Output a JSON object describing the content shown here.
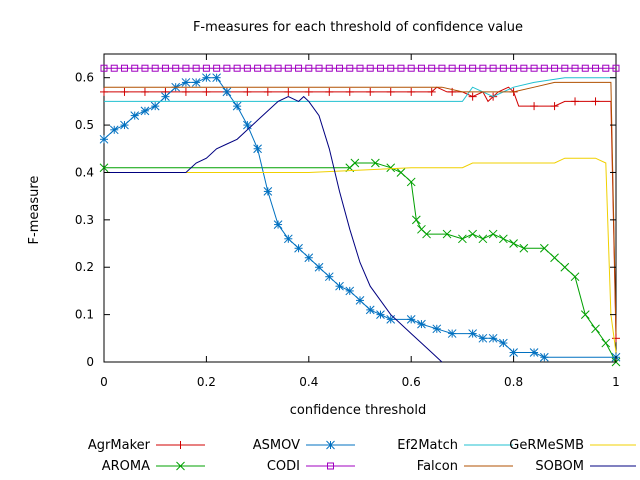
{
  "chart_data": {
    "type": "line",
    "title": "F-measures for each threshold of confidence value",
    "xlabel": "confidence threshold",
    "ylabel": "F-measure",
    "xlim": [
      0,
      1
    ],
    "ylim": [
      0,
      0.65
    ],
    "xticks": [
      0,
      0.2,
      0.4,
      0.6,
      0.8,
      1
    ],
    "xtick_labels": [
      "0",
      "0.2",
      "0.4",
      "0.6",
      "0.8",
      "1"
    ],
    "yticks": [
      0,
      0.1,
      0.2,
      0.3,
      0.4,
      0.5,
      0.6
    ],
    "ytick_labels": [
      "0",
      "0.1",
      "0.2",
      "0.3",
      "0.4",
      "0.5",
      "0.6"
    ],
    "grid": false,
    "legend_position": "bottom",
    "series": [
      {
        "name": "AgrMaker",
        "color": "#d00000",
        "marker": "plus",
        "points": [
          [
            0,
            0.57
          ],
          [
            0.64,
            0.57
          ],
          [
            0.65,
            0.58
          ],
          [
            0.67,
            0.57
          ],
          [
            0.7,
            0.57
          ],
          [
            0.72,
            0.56
          ],
          [
            0.74,
            0.57
          ],
          [
            0.75,
            0.55
          ],
          [
            0.77,
            0.57
          ],
          [
            0.79,
            0.58
          ],
          [
            0.8,
            0.57
          ],
          [
            0.81,
            0.54
          ],
          [
            0.88,
            0.54
          ],
          [
            0.9,
            0.55
          ],
          [
            0.98,
            0.55
          ],
          [
            0.99,
            0.55
          ],
          [
            1.0,
            0.05
          ]
        ]
      },
      {
        "name": "AROMA",
        "color": "#00a000",
        "marker": "x",
        "points": [
          [
            0,
            0.41
          ],
          [
            0.48,
            0.41
          ],
          [
            0.49,
            0.42
          ],
          [
            0.53,
            0.42
          ],
          [
            0.56,
            0.41
          ],
          [
            0.58,
            0.4
          ],
          [
            0.6,
            0.38
          ],
          [
            0.61,
            0.3
          ],
          [
            0.62,
            0.28
          ],
          [
            0.63,
            0.27
          ],
          [
            0.67,
            0.27
          ],
          [
            0.7,
            0.26
          ],
          [
            0.72,
            0.27
          ],
          [
            0.74,
            0.26
          ],
          [
            0.76,
            0.27
          ],
          [
            0.78,
            0.26
          ],
          [
            0.8,
            0.25
          ],
          [
            0.82,
            0.24
          ],
          [
            0.86,
            0.24
          ],
          [
            0.88,
            0.22
          ],
          [
            0.9,
            0.2
          ],
          [
            0.92,
            0.18
          ],
          [
            0.94,
            0.1
          ],
          [
            0.96,
            0.07
          ],
          [
            0.98,
            0.04
          ],
          [
            1.0,
            0.0
          ]
        ]
      },
      {
        "name": "ASMOV",
        "color": "#0070c0",
        "marker": "asterisk",
        "points": [
          [
            0,
            0.47
          ],
          [
            0.02,
            0.49
          ],
          [
            0.04,
            0.5
          ],
          [
            0.06,
            0.52
          ],
          [
            0.08,
            0.53
          ],
          [
            0.1,
            0.54
          ],
          [
            0.12,
            0.56
          ],
          [
            0.14,
            0.58
          ],
          [
            0.16,
            0.59
          ],
          [
            0.18,
            0.59
          ],
          [
            0.2,
            0.6
          ],
          [
            0.22,
            0.6
          ],
          [
            0.24,
            0.57
          ],
          [
            0.26,
            0.54
          ],
          [
            0.28,
            0.5
          ],
          [
            0.3,
            0.45
          ],
          [
            0.32,
            0.36
          ],
          [
            0.34,
            0.29
          ],
          [
            0.36,
            0.26
          ],
          [
            0.38,
            0.24
          ],
          [
            0.4,
            0.22
          ],
          [
            0.42,
            0.2
          ],
          [
            0.44,
            0.18
          ],
          [
            0.46,
            0.16
          ],
          [
            0.48,
            0.15
          ],
          [
            0.5,
            0.13
          ],
          [
            0.52,
            0.11
          ],
          [
            0.54,
            0.1
          ],
          [
            0.56,
            0.09
          ],
          [
            0.6,
            0.09
          ],
          [
            0.62,
            0.08
          ],
          [
            0.65,
            0.07
          ],
          [
            0.68,
            0.06
          ],
          [
            0.72,
            0.06
          ],
          [
            0.74,
            0.05
          ],
          [
            0.76,
            0.05
          ],
          [
            0.78,
            0.04
          ],
          [
            0.8,
            0.02
          ],
          [
            0.84,
            0.02
          ],
          [
            0.86,
            0.01
          ],
          [
            1.0,
            0.01
          ]
        ]
      },
      {
        "name": "CODI",
        "color": "#a000c0",
        "marker": "square",
        "points": [
          [
            0,
            0.62
          ],
          [
            1.0,
            0.62
          ]
        ]
      },
      {
        "name": "Ef2Match",
        "color": "#20c0d0",
        "marker": "none",
        "points": [
          [
            0,
            0.55
          ],
          [
            0.7,
            0.55
          ],
          [
            0.72,
            0.58
          ],
          [
            0.76,
            0.56
          ],
          [
            0.8,
            0.58
          ],
          [
            0.84,
            0.59
          ],
          [
            0.9,
            0.6
          ],
          [
            1.0,
            0.6
          ]
        ]
      },
      {
        "name": "Falcon",
        "color": "#b05000",
        "marker": "none",
        "points": [
          [
            0,
            0.58
          ],
          [
            0.66,
            0.58
          ],
          [
            0.7,
            0.57
          ],
          [
            0.76,
            0.57
          ],
          [
            0.8,
            0.57
          ],
          [
            0.84,
            0.58
          ],
          [
            0.88,
            0.59
          ],
          [
            0.99,
            0.59
          ],
          [
            1.0,
            0.06
          ]
        ]
      },
      {
        "name": "GeRMeSMB",
        "color": "#f0d000",
        "marker": "none",
        "points": [
          [
            0,
            0.4
          ],
          [
            0.4,
            0.4
          ],
          [
            0.6,
            0.41
          ],
          [
            0.7,
            0.41
          ],
          [
            0.72,
            0.42
          ],
          [
            0.88,
            0.42
          ],
          [
            0.9,
            0.43
          ],
          [
            0.96,
            0.43
          ],
          [
            0.98,
            0.42
          ],
          [
            0.99,
            0.1
          ],
          [
            1.0,
            0.02
          ]
        ]
      },
      {
        "name": "SOBOM",
        "color": "#000080",
        "marker": "none",
        "points": [
          [
            0,
            0.4
          ],
          [
            0.16,
            0.4
          ],
          [
            0.18,
            0.42
          ],
          [
            0.2,
            0.43
          ],
          [
            0.22,
            0.45
          ],
          [
            0.24,
            0.46
          ],
          [
            0.26,
            0.47
          ],
          [
            0.28,
            0.49
          ],
          [
            0.3,
            0.51
          ],
          [
            0.32,
            0.53
          ],
          [
            0.34,
            0.55
          ],
          [
            0.36,
            0.56
          ],
          [
            0.38,
            0.55
          ],
          [
            0.39,
            0.56
          ],
          [
            0.4,
            0.55
          ],
          [
            0.42,
            0.52
          ],
          [
            0.44,
            0.45
          ],
          [
            0.46,
            0.36
          ],
          [
            0.48,
            0.28
          ],
          [
            0.5,
            0.21
          ],
          [
            0.52,
            0.16
          ],
          [
            0.54,
            0.13
          ],
          [
            0.56,
            0.1
          ],
          [
            0.58,
            0.08
          ],
          [
            0.6,
            0.06
          ],
          [
            0.62,
            0.04
          ],
          [
            0.64,
            0.02
          ],
          [
            0.66,
            0.0
          ]
        ]
      }
    ]
  }
}
